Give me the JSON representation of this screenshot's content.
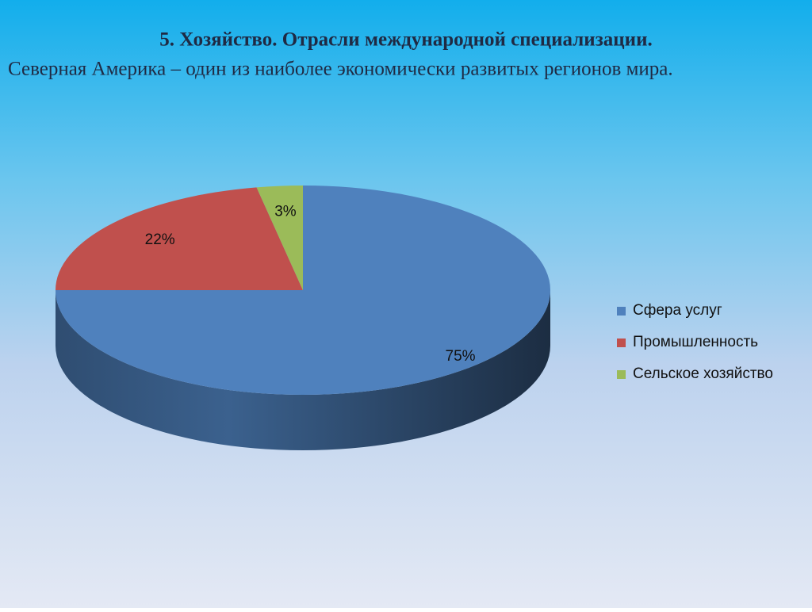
{
  "chart_data": {
    "type": "pie",
    "title": "5. Хозяйство. Отрасли международной специализации.",
    "subtitle": "Северная Америка – один из наиболее экономически развитых регионов мира.",
    "categories": [
      "Сфера услуг",
      "Промышленность",
      "Сельское хозяйство"
    ],
    "values": [
      75,
      22,
      3
    ],
    "value_labels": [
      "75%",
      "22%",
      "3%"
    ],
    "colors": [
      "#4f81bd",
      "#c0504d",
      "#9bbb59"
    ],
    "legend": "right"
  }
}
